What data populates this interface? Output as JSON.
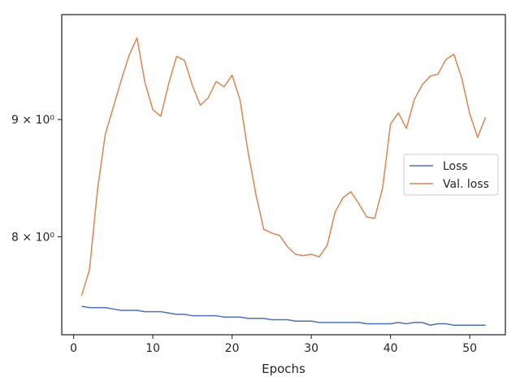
{
  "chart_data": {
    "type": "line",
    "xlabel": "Epochs",
    "ylabel": "",
    "yscale": "log",
    "xlim": [
      -1.5,
      54.5
    ],
    "ylim": [
      7.25,
      10.0
    ],
    "xticks": [
      0,
      10,
      20,
      30,
      40,
      50
    ],
    "xtick_labels": [
      "0",
      "10",
      "20",
      "30",
      "40",
      "50"
    ],
    "yticks": [
      8,
      9
    ],
    "ytick_labels": [
      "8 × 10⁰",
      "9 × 10⁰"
    ],
    "grid": false,
    "legend": "center-right",
    "x": [
      1,
      2,
      3,
      4,
      5,
      6,
      7,
      8,
      9,
      10,
      11,
      12,
      13,
      14,
      15,
      16,
      17,
      18,
      19,
      20,
      21,
      22,
      23,
      24,
      25,
      26,
      27,
      28,
      29,
      30,
      31,
      32,
      33,
      34,
      35,
      36,
      37,
      38,
      39,
      40,
      41,
      42,
      43,
      44,
      45,
      46,
      47,
      48,
      49,
      50,
      51,
      52
    ],
    "series": [
      {
        "name": "Loss",
        "color": "#4c72b0",
        "values": [
          7.46,
          7.45,
          7.45,
          7.45,
          7.44,
          7.43,
          7.43,
          7.43,
          7.42,
          7.42,
          7.42,
          7.41,
          7.4,
          7.4,
          7.39,
          7.39,
          7.39,
          7.39,
          7.38,
          7.38,
          7.38,
          7.37,
          7.37,
          7.37,
          7.36,
          7.36,
          7.36,
          7.35,
          7.35,
          7.35,
          7.34,
          7.34,
          7.34,
          7.34,
          7.34,
          7.34,
          7.33,
          7.33,
          7.33,
          7.33,
          7.34,
          7.33,
          7.34,
          7.34,
          7.32,
          7.33,
          7.33,
          7.32,
          7.32,
          7.32,
          7.32,
          7.32
        ]
      },
      {
        "name": "Val. loss",
        "color": "#dd8452",
        "values": [
          7.54,
          7.74,
          8.38,
          8.87,
          9.11,
          9.36,
          9.6,
          9.77,
          9.34,
          9.09,
          9.03,
          9.33,
          9.59,
          9.55,
          9.31,
          9.13,
          9.2,
          9.35,
          9.3,
          9.41,
          9.18,
          8.72,
          8.35,
          8.06,
          8.03,
          8.01,
          7.92,
          7.86,
          7.85,
          7.86,
          7.84,
          7.93,
          8.2,
          8.32,
          8.37,
          8.27,
          8.16,
          8.15,
          8.4,
          8.96,
          9.06,
          8.92,
          9.18,
          9.32,
          9.4,
          9.42,
          9.56,
          9.61,
          9.38,
          9.05,
          8.84,
          9.02
        ]
      }
    ]
  }
}
